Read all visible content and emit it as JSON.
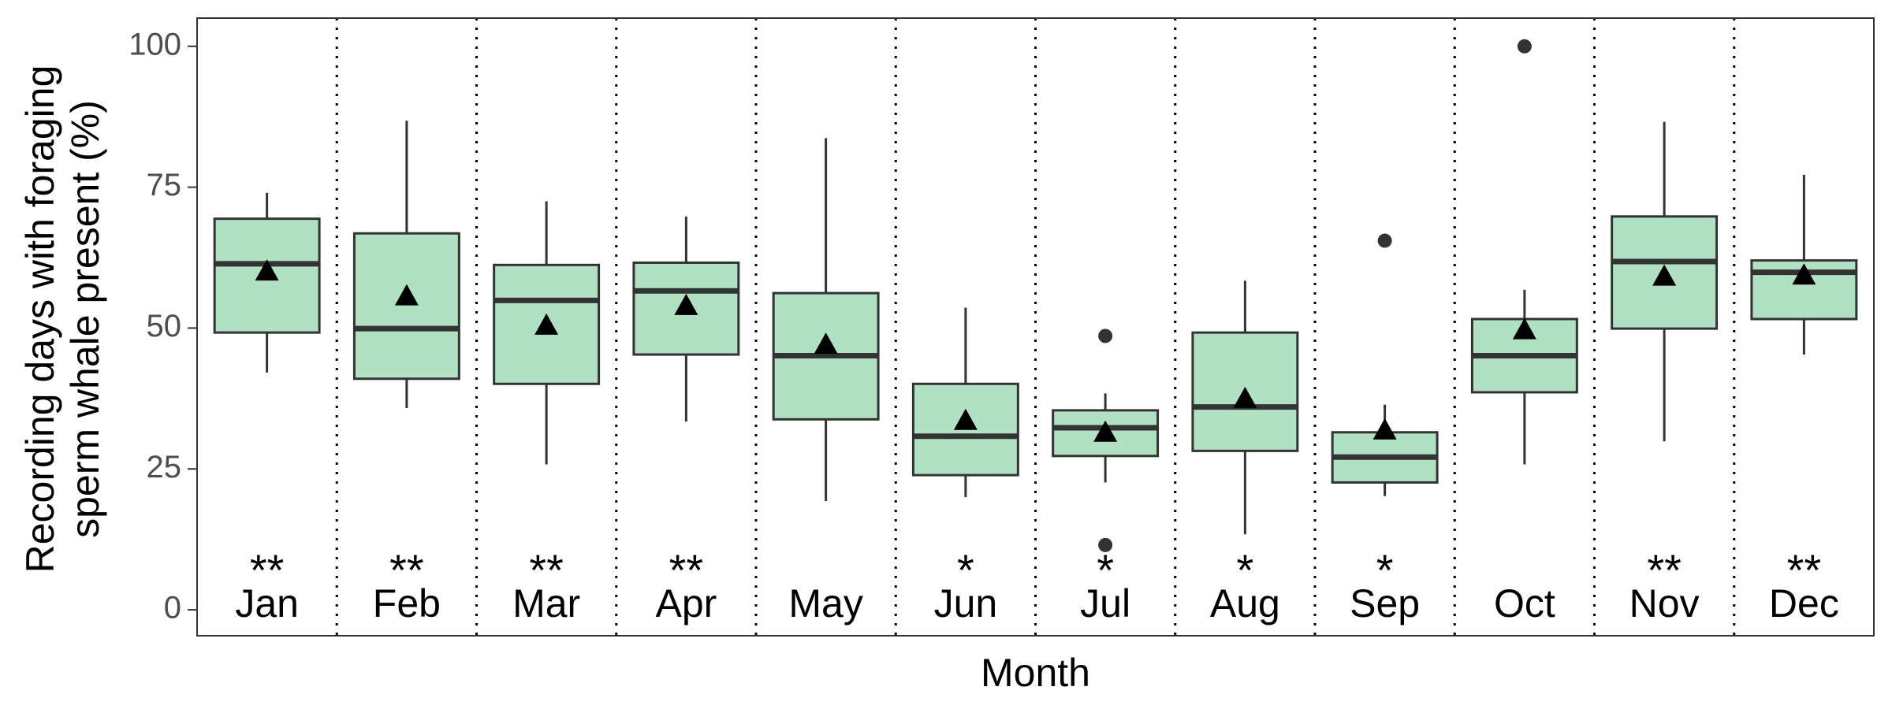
{
  "chart_data": {
    "type": "box",
    "x_label": "Month",
    "y_label": [
      "Recording days with foraging",
      "sperm whale present (%)"
    ],
    "categories": [
      "Jan",
      "Feb",
      "Mar",
      "Apr",
      "May",
      "Jun",
      "Jul",
      "Aug",
      "Sep",
      "Oct",
      "Nov",
      "Dec"
    ],
    "significance": [
      "**",
      "**",
      "**",
      "**",
      null,
      "*",
      "*",
      "*",
      "*",
      null,
      "**",
      "**"
    ],
    "boxes": [
      {
        "whisker_low": 42.1,
        "q1": 49.2,
        "median": 61.4,
        "q3": 69.4,
        "whisker_high": 74.0,
        "mean": 60.1,
        "outliers": []
      },
      {
        "whisker_low": 35.8,
        "q1": 41.0,
        "median": 49.9,
        "q3": 66.8,
        "whisker_high": 86.8,
        "mean": 55.7,
        "outliers": []
      },
      {
        "whisker_low": 25.8,
        "q1": 40.1,
        "median": 54.9,
        "q3": 61.2,
        "whisker_high": 72.5,
        "mean": 50.5,
        "outliers": []
      },
      {
        "whisker_low": 33.4,
        "q1": 45.3,
        "median": 56.6,
        "q3": 61.6,
        "whisker_high": 69.8,
        "mean": 54.0,
        "outliers": []
      },
      {
        "whisker_low": 19.3,
        "q1": 33.8,
        "median": 45.1,
        "q3": 56.2,
        "whisker_high": 83.7,
        "mean": 47.1,
        "outliers": []
      },
      {
        "whisker_low": 20.0,
        "q1": 23.9,
        "median": 30.8,
        "q3": 40.1,
        "whisker_high": 53.6,
        "mean": 33.6,
        "outliers": []
      },
      {
        "whisker_low": 22.6,
        "q1": 27.3,
        "median": 32.3,
        "q3": 35.4,
        "whisker_high": 38.4,
        "mean": 31.5,
        "outliers": [
          48.6,
          11.5
        ]
      },
      {
        "whisker_low": 13.4,
        "q1": 28.2,
        "median": 36.0,
        "q3": 49.2,
        "whisker_high": 58.4,
        "mean": 37.5,
        "outliers": []
      },
      {
        "whisker_low": 20.2,
        "q1": 22.6,
        "median": 27.1,
        "q3": 31.5,
        "whisker_high": 36.4,
        "mean": 31.9,
        "outliers": [
          65.5
        ]
      },
      {
        "whisker_low": 25.8,
        "q1": 38.6,
        "median": 45.1,
        "q3": 51.6,
        "whisker_high": 56.8,
        "mean": 49.7,
        "outliers": [
          100
        ]
      },
      {
        "whisker_low": 29.9,
        "q1": 49.9,
        "median": 61.8,
        "q3": 69.8,
        "whisker_high": 86.6,
        "mean": 59.2,
        "outliers": []
      },
      {
        "whisker_low": 45.3,
        "q1": 51.6,
        "median": 59.9,
        "q3": 62.0,
        "whisker_high": 77.2,
        "mean": 59.4,
        "outliers": []
      }
    ],
    "color": "#b0e1c3",
    "ylim": [
      -4.6,
      105
    ],
    "yticks": [
      0,
      25,
      50,
      75,
      100
    ]
  }
}
